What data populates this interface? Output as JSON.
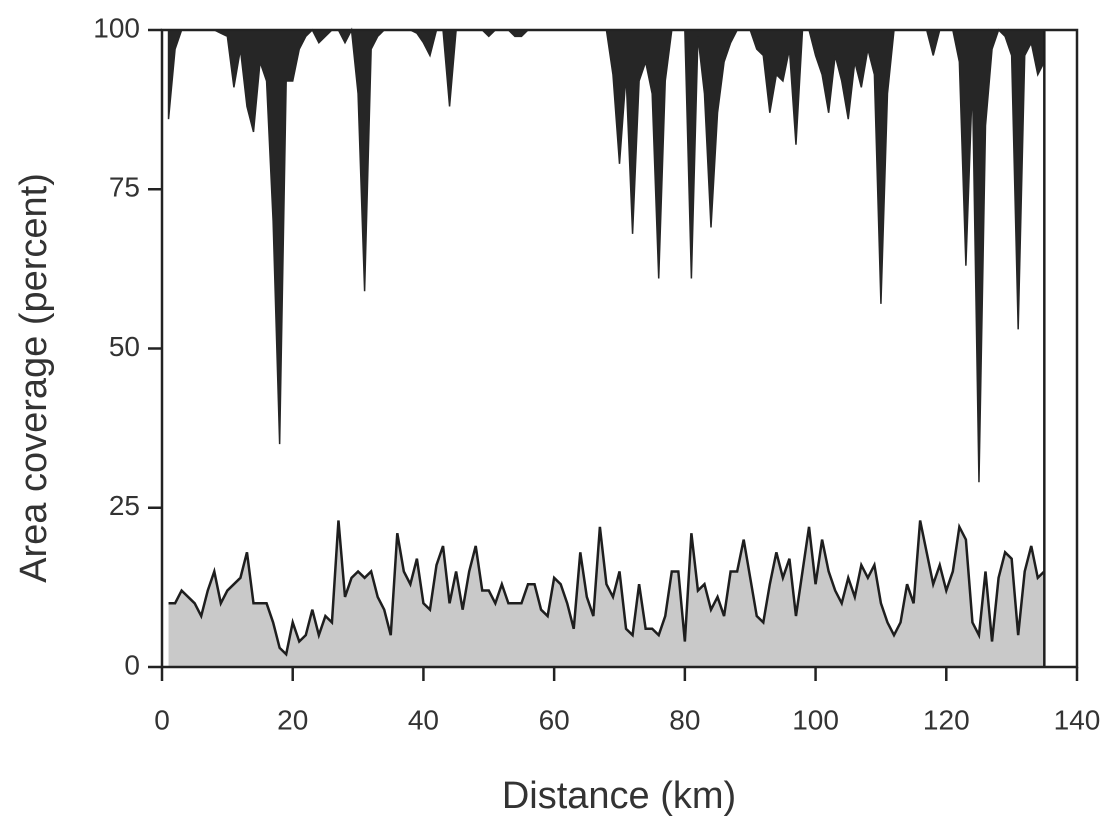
{
  "chart_data": {
    "type": "area",
    "xlabel": "Distance (km)",
    "ylabel": "Area coverage (percent)",
    "x": [
      1,
      2,
      3,
      4,
      5,
      6,
      7,
      8,
      9,
      10,
      11,
      12,
      13,
      14,
      15,
      16,
      17,
      18,
      19,
      20,
      21,
      22,
      23,
      24,
      25,
      26,
      27,
      28,
      29,
      30,
      31,
      32,
      33,
      34,
      35,
      36,
      37,
      38,
      39,
      40,
      41,
      42,
      43,
      44,
      45,
      46,
      47,
      48,
      49,
      50,
      51,
      52,
      53,
      54,
      55,
      56,
      57,
      58,
      59,
      60,
      61,
      62,
      63,
      64,
      65,
      66,
      67,
      68,
      69,
      70,
      71,
      72,
      73,
      74,
      75,
      76,
      77,
      78,
      79,
      80,
      81,
      82,
      83,
      84,
      85,
      86,
      87,
      88,
      89,
      90,
      91,
      92,
      93,
      94,
      95,
      96,
      97,
      98,
      99,
      100,
      101,
      102,
      103,
      104,
      105,
      106,
      107,
      108,
      109,
      110,
      111,
      112,
      113,
      114,
      115,
      116,
      117,
      118,
      119,
      120,
      121,
      122,
      123,
      124,
      125,
      126,
      127,
      128,
      129,
      130,
      131,
      132,
      133,
      134,
      135
    ],
    "series": [
      {
        "color": "#262626",
        "fill": "above",
        "values": [
          86,
          97,
          100,
          100,
          100,
          100,
          100,
          100,
          99.5,
          99,
          91,
          97,
          88,
          84,
          95,
          92,
          70,
          35,
          92,
          92,
          97,
          99,
          100,
          98,
          99,
          100,
          100,
          98,
          100,
          90,
          59,
          97,
          99,
          100,
          100,
          100,
          100,
          100,
          99.5,
          98,
          96,
          100,
          100,
          88,
          100,
          100,
          100,
          100,
          100,
          99,
          100,
          100,
          100,
          99,
          99,
          100,
          100,
          100,
          100,
          100,
          100,
          100,
          100,
          100,
          100,
          100,
          100,
          100,
          93,
          79,
          93,
          68,
          92,
          95,
          90,
          61,
          92,
          100,
          100,
          100,
          61,
          99,
          90,
          69,
          87,
          95,
          98,
          100,
          100,
          100,
          97,
          96,
          87,
          93,
          92,
          97,
          82,
          100,
          100,
          96,
          93,
          87,
          96,
          92,
          86,
          95,
          91,
          97,
          93,
          57,
          90,
          100,
          100,
          100,
          100,
          100,
          100,
          96,
          100,
          100,
          100,
          95,
          63,
          92,
          29,
          85,
          97,
          100,
          99,
          96,
          53,
          96,
          98,
          93,
          95
        ]
      },
      {
        "color": "#c9c9c9",
        "fill": "below",
        "values": [
          10,
          10,
          12,
          11,
          10,
          8,
          12,
          15,
          10,
          12,
          13,
          14,
          18,
          10,
          10,
          10,
          7,
          3,
          2,
          7,
          4,
          5,
          9,
          5,
          8,
          7,
          23,
          11,
          14,
          15,
          14,
          15,
          11,
          9,
          5,
          21,
          15,
          13,
          17,
          10,
          9,
          16,
          19,
          10,
          15,
          9,
          15,
          19,
          12,
          12,
          10,
          13,
          10,
          10,
          10,
          13,
          13,
          9,
          8,
          14,
          13,
          10,
          6,
          18,
          11,
          8,
          22,
          13,
          11,
          15,
          6,
          5,
          13,
          6,
          6,
          5,
          8,
          15,
          15,
          4,
          21,
          12,
          13,
          9,
          11,
          8,
          15,
          15,
          20,
          14,
          8,
          7,
          13,
          18,
          14,
          17,
          8,
          15,
          22,
          13,
          20,
          15,
          12,
          10,
          14,
          11,
          16,
          14,
          16,
          10,
          7,
          5,
          7,
          13,
          10,
          23,
          18,
          13,
          16,
          12,
          15,
          22,
          20,
          7,
          5,
          15,
          4,
          14,
          18,
          17,
          5,
          15,
          19,
          14,
          15
        ]
      }
    ],
    "xlim": [
      0,
      140
    ],
    "xticks": [
      0,
      20,
      40,
      60,
      80,
      100,
      120,
      140
    ],
    "ylim": [
      0,
      100
    ],
    "yticks": [
      0,
      25,
      50,
      75,
      100
    ]
  }
}
